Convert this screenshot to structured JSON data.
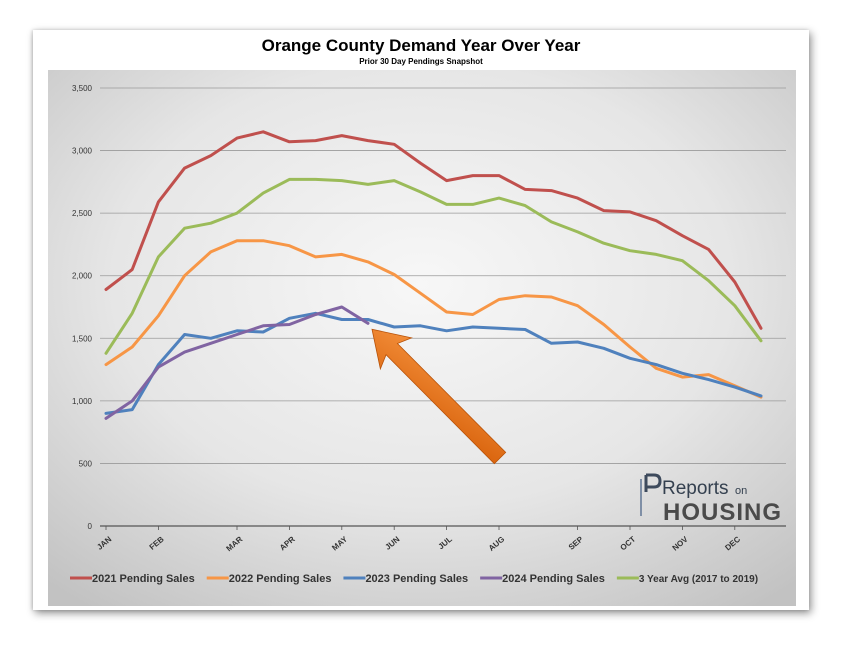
{
  "chart_data": {
    "type": "line",
    "title": "Orange County Demand Year Over Year",
    "subtitle": "Prior 30 Day Pendings Snapshot",
    "xlabel": "",
    "ylabel": "",
    "ylim": [
      0,
      3500
    ],
    "yticks": [
      0,
      500,
      1000,
      1500,
      2000,
      2500,
      3000,
      3500
    ],
    "ytick_labels": [
      "0",
      "500",
      "1,000",
      "1,500",
      "2,000",
      "2,500",
      "3,000",
      "3,500"
    ],
    "month_labels": [
      "JAN",
      "FEB",
      "MAR",
      "APR",
      "MAY",
      "JUN",
      "JUL",
      "AUG",
      "SEP",
      "OCT",
      "NOV",
      "DEC"
    ],
    "month_label_index": [
      0,
      2,
      5,
      7,
      9,
      11,
      13,
      15,
      18,
      20,
      22,
      24
    ],
    "grid": true,
    "legend_position": "bottom",
    "background": "gradient-gray",
    "series": [
      {
        "name": "2021 Pending Sales",
        "color": "#c0504d",
        "values": [
          1890,
          2050,
          2590,
          2860,
          2960,
          3100,
          3150,
          3070,
          3080,
          3120,
          3080,
          3050,
          2900,
          2760,
          2800,
          2800,
          2690,
          2680,
          2620,
          2520,
          2510,
          2440,
          2320,
          2210,
          1950,
          1580
        ]
      },
      {
        "name": "2022 Pending Sales",
        "color": "#f79646",
        "values": [
          1290,
          1430,
          1680,
          2000,
          2190,
          2280,
          2280,
          2240,
          2150,
          2170,
          2110,
          2010,
          1860,
          1710,
          1690,
          1810,
          1840,
          1830,
          1760,
          1610,
          1430,
          1260,
          1190,
          1210,
          1120,
          1030
        ]
      },
      {
        "name": "2023 Pending Sales",
        "color": "#4f81bd",
        "values": [
          900,
          930,
          1290,
          1530,
          1500,
          1560,
          1550,
          1660,
          1700,
          1650,
          1650,
          1590,
          1600,
          1560,
          1590,
          1580,
          1570,
          1460,
          1470,
          1420,
          1340,
          1290,
          1220,
          1170,
          1110,
          1040
        ]
      },
      {
        "name": "2024 Pending Sales",
        "color": "#8064a2",
        "values": [
          860,
          1000,
          1270,
          1390,
          1460,
          1530,
          1600,
          1610,
          1690,
          1750,
          1620,
          null,
          null,
          null,
          null,
          null,
          null,
          null,
          null,
          null,
          null,
          null,
          null,
          null,
          null,
          null
        ]
      },
      {
        "name": "3 Year Avg (2017 to 2019)",
        "color": "#9bbb59",
        "values": [
          1380,
          1700,
          2150,
          2380,
          2420,
          2500,
          2660,
          2770,
          2770,
          2760,
          2730,
          2760,
          2670,
          2570,
          2570,
          2620,
          2560,
          2430,
          2350,
          2260,
          2200,
          2170,
          2120,
          1960,
          1760,
          1480
        ]
      }
    ],
    "annotation": {
      "type": "arrow",
      "color": "#e46c0a",
      "points_to_index": 10,
      "points_to_value": 1620
    }
  },
  "logo": {
    "text": "Reports on HOUSING"
  }
}
